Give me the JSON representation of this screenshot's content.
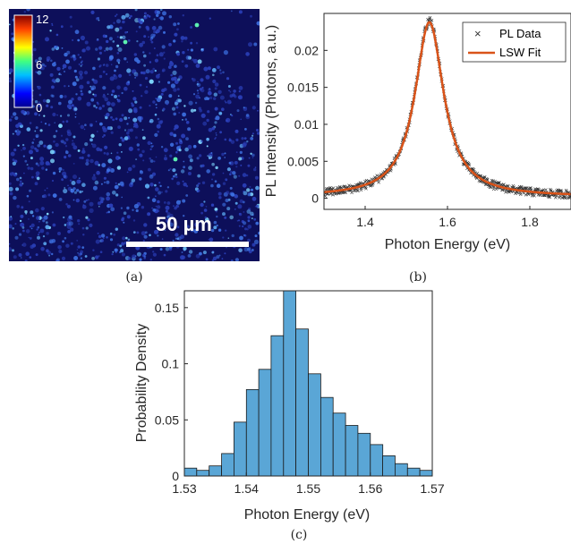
{
  "panel_a": {
    "colorbar_ticks": [
      "12",
      "6",
      "0"
    ],
    "scalebar_label": "50 µm",
    "caption": "(a)"
  },
  "chart_data": [
    {
      "type": "scatter",
      "panel": "b",
      "xlabel": "Photon Energy (eV)",
      "ylabel": "PL Intensity (Photons, a.u.)",
      "xlim": [
        1.3,
        1.9
      ],
      "ylim": [
        -0.0015,
        0.025
      ],
      "xticks": [
        "1.4",
        "1.6",
        "1.8"
      ],
      "yticks": [
        "0",
        "0.005",
        "0.01",
        "0.015",
        "0.02"
      ],
      "series": [
        {
          "name": "PL Data",
          "marker": "x",
          "color": "#333333",
          "peak_x": 1.556,
          "peak_y": 0.024,
          "fwhm": 0.085,
          "baseline": 0.0002
        },
        {
          "name": "LSW Fit",
          "marker": "line",
          "color": "#d95319",
          "peak_x": 1.556,
          "peak_y": 0.0238,
          "fwhm": 0.085,
          "baseline": 0.0002
        }
      ],
      "legend_position": "top-right",
      "caption": "(b)"
    },
    {
      "type": "bar",
      "panel": "c",
      "xlabel": "Photon Energy (eV)",
      "ylabel": "Probability Density",
      "xlim": [
        1.53,
        1.57
      ],
      "ylim": [
        0,
        0.165
      ],
      "xticks": [
        "1.53",
        "1.54",
        "1.55",
        "1.56",
        "1.57"
      ],
      "yticks": [
        "0",
        "0.05",
        "0.1",
        "0.15"
      ],
      "bin_edges": [
        1.53,
        1.532,
        1.534,
        1.536,
        1.538,
        1.54,
        1.542,
        1.544,
        1.546,
        1.548,
        1.55,
        1.552,
        1.554,
        1.556,
        1.558,
        1.56,
        1.562,
        1.564,
        1.566,
        1.568,
        1.57
      ],
      "values": [
        0.007,
        0.005,
        0.009,
        0.02,
        0.048,
        0.077,
        0.095,
        0.125,
        0.165,
        0.131,
        0.091,
        0.07,
        0.056,
        0.045,
        0.038,
        0.028,
        0.018,
        0.011,
        0.007,
        0.005
      ],
      "color": "#5aa6d6",
      "caption": "(c)"
    }
  ],
  "colors": {
    "image_bg": "#0d0f5a",
    "fit_line": "#d95319",
    "bars": "#5aa6d6"
  }
}
